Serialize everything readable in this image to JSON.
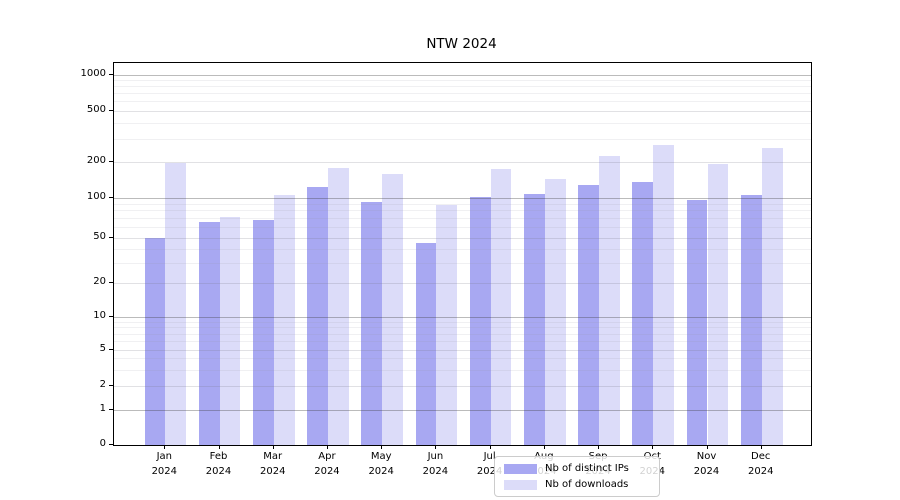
{
  "title": "NTW 2024",
  "legend": {
    "items": [
      {
        "label": "Nb of distinct IPs",
        "color": "#a8a8f2"
      },
      {
        "label": "Nb of downloads",
        "color": "#dcdcf9"
      }
    ]
  },
  "y_axis": {
    "tick_labels": [
      "0",
      "1",
      "2",
      "5",
      "10",
      "20",
      "50",
      "100",
      "200",
      "500",
      "1000"
    ]
  },
  "chart_data": {
    "type": "bar",
    "title": "NTW 2024",
    "categories": [
      "Jan 2024",
      "Feb 2024",
      "Mar 2024",
      "Apr 2024",
      "May 2024",
      "Jun 2024",
      "Jul 2024",
      "Aug 2024",
      "Sep 2024",
      "Oct 2024",
      "Nov 2024",
      "Dec 2024"
    ],
    "series": [
      {
        "name": "Nb of distinct IPs",
        "color": "#a8a8f2",
        "values": [
          50,
          65,
          68,
          123,
          93,
          45,
          101,
          107,
          128,
          135,
          95,
          104
        ]
      },
      {
        "name": "Nb of downloads",
        "color": "#dcdcf9",
        "values": [
          193,
          71,
          105,
          177,
          158,
          88,
          172,
          142,
          220,
          270,
          190,
          257
        ]
      }
    ],
    "xlabel": "",
    "ylabel": "",
    "yscale": "log",
    "y_ticks": [
      0,
      1,
      2,
      5,
      10,
      20,
      50,
      100,
      200,
      500,
      1000
    ],
    "ylim": [
      0,
      1400
    ],
    "grid": true,
    "legend_position": "lower center"
  }
}
